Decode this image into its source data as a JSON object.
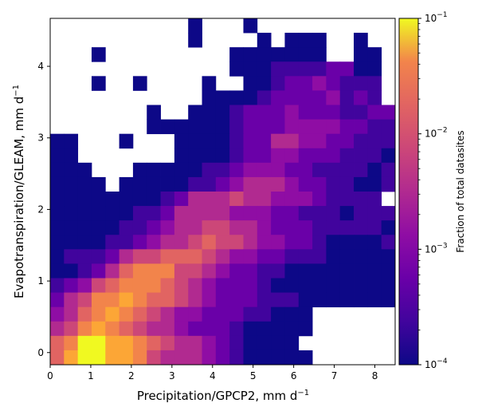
{
  "chart_data": {
    "type": "heatmap",
    "title": "",
    "xlabel": {
      "text": "Precipitation/GPCP2,  mm d",
      "sup": "−1"
    },
    "ylabel": {
      "text": "Evapotranspiration/GLEAM,  mm d",
      "sup": "−1"
    },
    "xlim": [
      0,
      8.5
    ],
    "ylim": [
      -0.17,
      4.67
    ],
    "bin_width_x": 0.34,
    "bin_height_y": 0.2,
    "x_ticks": [
      0,
      1,
      2,
      3,
      4,
      5,
      6,
      7,
      8
    ],
    "y_ticks": [
      0,
      1,
      2,
      3,
      4
    ],
    "colorbar": {
      "label": "Fraction of total datasites",
      "scale": "log",
      "range": [
        0.0001,
        0.1
      ],
      "colormap": "plasma",
      "ticks": [
        {
          "value": 0.1,
          "base": "10",
          "exp": "−1"
        },
        {
          "value": 0.01,
          "base": "10",
          "exp": "−2"
        },
        {
          "value": 0.001,
          "base": "10",
          "exp": "−3"
        },
        {
          "value": 0.0001,
          "base": "10",
          "exp": "−4"
        }
      ]
    },
    "grid_encoding": "rows listed from top (y≈4.57) to bottom (y≈-0.07); each character is one x-bin from x=0; '.' = empty, '0'-'9' = log10 level from 1e-4 (0) to 1e-1 (9)",
    "grid": [
      "..........0...0..........",
      "..........0....0.000..0..",
      "...0.........0000000..00.",
      ".............00011112200.",
      "...0..0....0..0012232111.",
      "...........0000122223121.",
      ".......0..0001222322211220.",
      ".......000000122233332211.",
      "00...0...00001224433221111",
      "00.......0000122332221110.",
      "000...0000011233322111101.",
      "0000.0000011234443221100101",
      "000000001244454433321111.",
      "00000011244443332211101110",
      "000001123445544322211111011",
      "000011234456554332210000101",
      "011124556665433221110000000",
      "0012467775543221100000000.",
      "12356777654322210000000000",
      "2457787665432221110000000",
      "3467876543322211000......",
      "4578765443222100000.....",
      "679988765443210000.......",
      "6899887544432100000......"
    ]
  }
}
